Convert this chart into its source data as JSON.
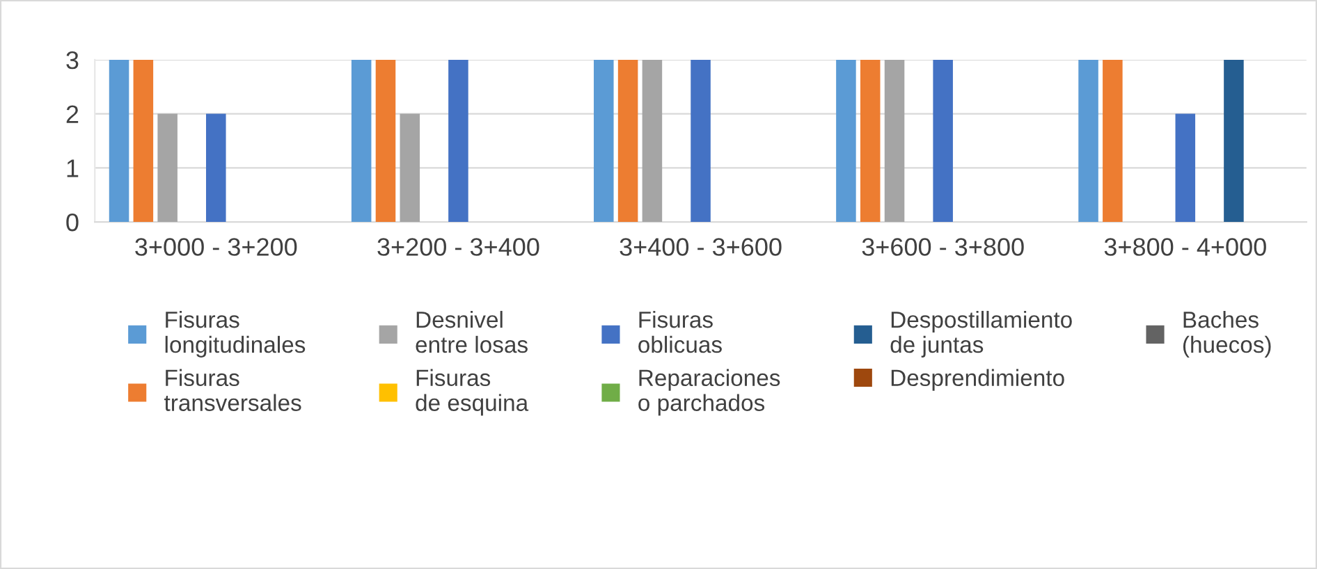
{
  "chart_data": {
    "type": "bar",
    "categories": [
      "3+000 - 3+200",
      "3+200 - 3+400",
      "3+400 - 3+600",
      "3+600 - 3+800",
      "3+800 - 4+000"
    ],
    "series": [
      {
        "name": "Fisuras\nlongitudinales",
        "color": "#5b9bd5",
        "values": [
          3,
          3,
          3,
          3,
          3
        ]
      },
      {
        "name": "Fisuras\ntransversales",
        "color": "#ed7d31",
        "values": [
          3,
          3,
          3,
          3,
          3
        ]
      },
      {
        "name": "Desnivel\nentre losas",
        "color": "#a5a5a5",
        "values": [
          2,
          2,
          3,
          3,
          0
        ]
      },
      {
        "name": "Fisuras\nde esquina",
        "color": "#ffc000",
        "values": [
          0,
          0,
          0,
          0,
          0
        ]
      },
      {
        "name": "Fisuras\noblicuas",
        "color": "#4472c4",
        "values": [
          2,
          3,
          3,
          3,
          2
        ]
      },
      {
        "name": "Reparaciones\no parchados",
        "color": "#70ad47",
        "values": [
          0,
          0,
          0,
          0,
          0
        ]
      },
      {
        "name": "Despostillamiento\nde juntas",
        "color": "#255e91",
        "values": [
          0,
          0,
          0,
          0,
          3
        ]
      },
      {
        "name": "Desprendimiento",
        "color": "#9e480e",
        "values": [
          0,
          0,
          0,
          0,
          0
        ]
      },
      {
        "name": "Baches\n(huecos)",
        "color": "#636363",
        "values": [
          0,
          0,
          0,
          0,
          0
        ]
      }
    ],
    "ylim": [
      0,
      3
    ],
    "yticks": [
      0,
      1,
      2,
      3
    ],
    "grid": "y",
    "legend": "bottom"
  }
}
